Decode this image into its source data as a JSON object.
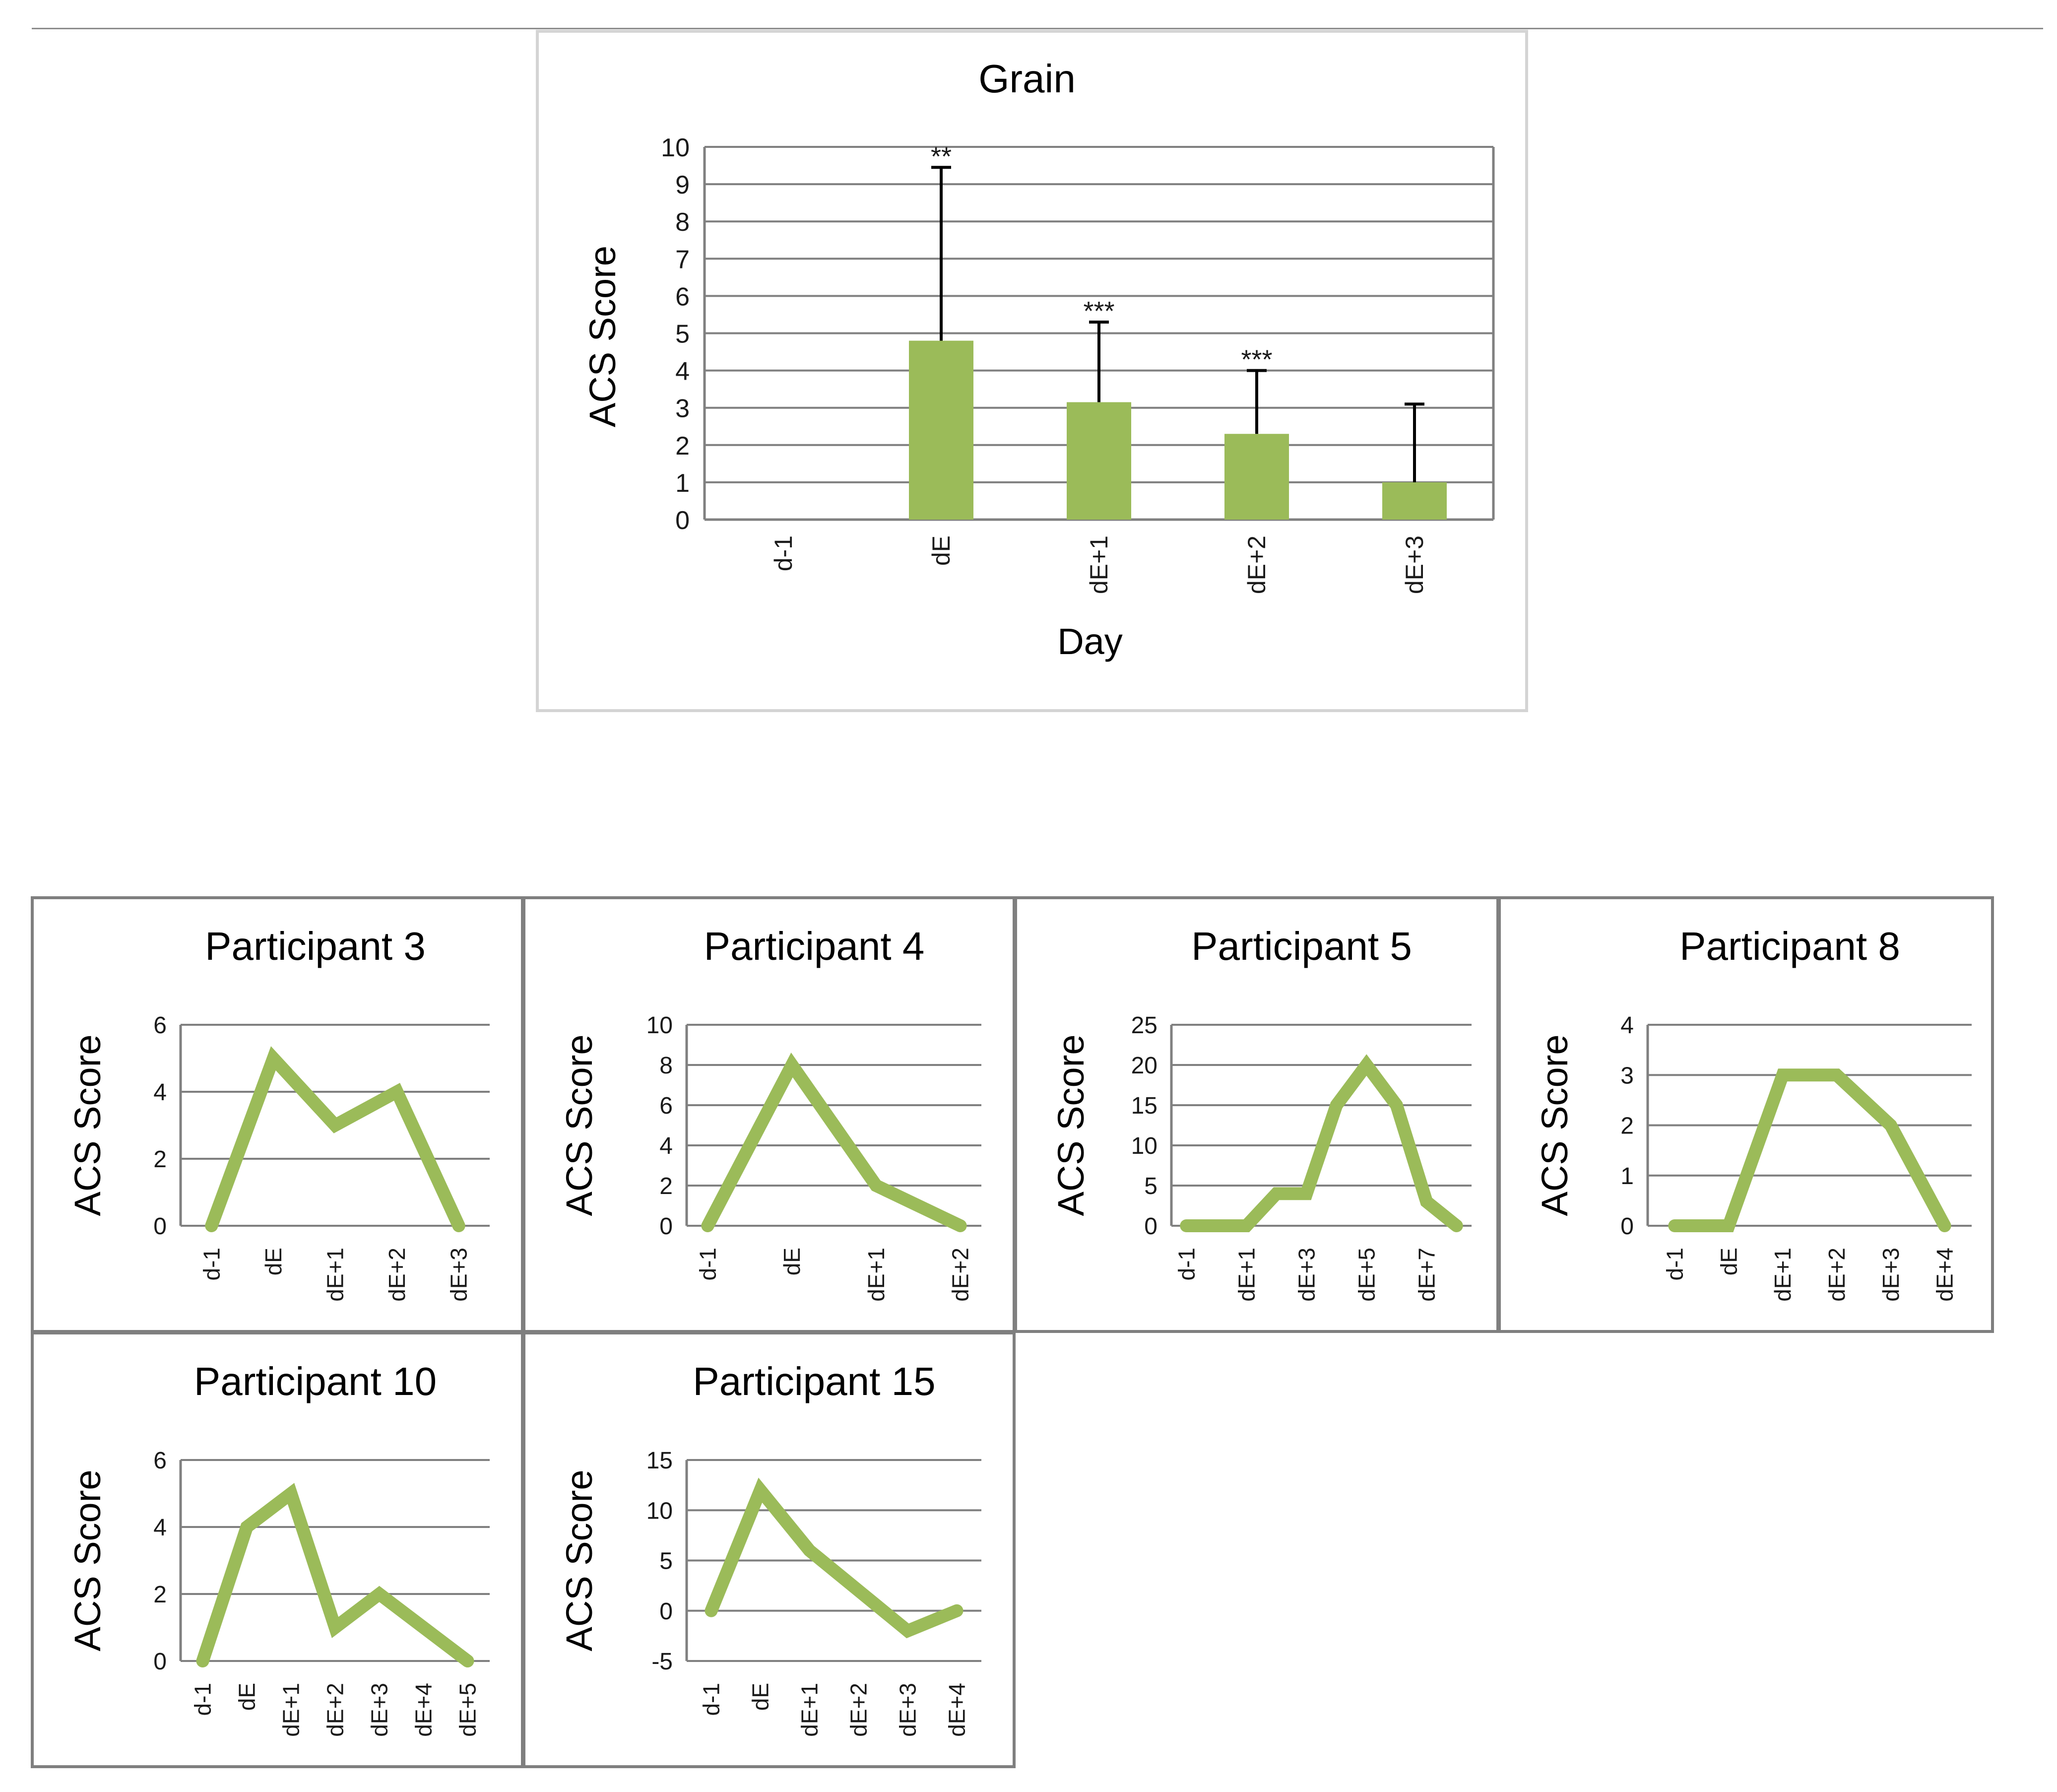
{
  "colors": {
    "bar": "#9bbb59",
    "line": "#9bbb59",
    "error_bar": "#000000",
    "grid": "#808080"
  },
  "chart_data": [
    {
      "type": "bar",
      "title": "Grain",
      "xlabel": "Day",
      "ylabel": "ACS Score",
      "ylim": [
        0,
        10
      ],
      "yticks": [
        0,
        1,
        2,
        3,
        4,
        5,
        6,
        7,
        8,
        9,
        10
      ],
      "categories": [
        "d-1",
        "dE",
        "dE+1",
        "dE+2",
        "dE+3"
      ],
      "values": [
        0,
        4.8,
        3.15,
        2.3,
        1.0
      ],
      "error": [
        0,
        4.65,
        2.15,
        1.7,
        2.1
      ],
      "annotations": [
        "",
        "**",
        "***",
        "***",
        ""
      ],
      "grid": true,
      "legend": "none"
    },
    {
      "type": "line",
      "title": "Participant 3",
      "ylabel": "ACS Score",
      "ylim": [
        0,
        6
      ],
      "yticks": [
        0,
        2,
        4,
        6
      ],
      "categories": [
        "d-1",
        "dE",
        "dE+1",
        "dE+2",
        "dE+3"
      ],
      "labeled": [
        "d-1",
        "dE",
        "dE+1",
        "dE+2",
        "dE+3"
      ],
      "values": [
        0,
        5,
        3,
        4,
        0
      ],
      "grid": true
    },
    {
      "type": "line",
      "title": "Participant 4",
      "ylabel": "ACS Score",
      "ylim": [
        0,
        10
      ],
      "yticks": [
        0,
        2,
        4,
        6,
        8,
        10
      ],
      "categories": [
        "d-1",
        "",
        "dE",
        "",
        "dE+1",
        "",
        "dE+2"
      ],
      "labeled": [
        "d-1",
        "dE",
        "dE+1",
        "dE+2"
      ],
      "values": [
        0,
        4,
        8,
        5,
        2,
        1,
        0
      ],
      "grid": true
    },
    {
      "type": "line",
      "title": "Participant 5",
      "ylabel": "ACS Score",
      "ylim": [
        0,
        25
      ],
      "yticks": [
        0,
        5,
        10,
        15,
        20,
        25
      ],
      "categories": [
        "d-1",
        "",
        "dE+1",
        "",
        "dE+3",
        "",
        "dE+5",
        "",
        "dE+7",
        ""
      ],
      "labeled": [
        "d-1",
        "dE+1",
        "dE+3",
        "dE+5",
        "dE+7"
      ],
      "values": [
        0,
        0,
        0,
        4,
        4,
        15,
        20,
        15,
        3,
        0
      ],
      "grid": true
    },
    {
      "type": "line",
      "title": "Participant 8",
      "ylabel": "ACS Score",
      "ylim": [
        0,
        4
      ],
      "yticks": [
        0,
        1,
        2,
        3,
        4
      ],
      "categories": [
        "d-1",
        "dE",
        "dE+1",
        "dE+2",
        "dE+3",
        "dE+4"
      ],
      "labeled": [
        "d-1",
        "dE",
        "dE+1",
        "dE+2",
        "dE+3",
        "dE+4"
      ],
      "values": [
        0,
        0,
        3,
        3,
        2,
        0
      ],
      "grid": true
    },
    {
      "type": "line",
      "title": "Participant 10",
      "ylabel": "ACS Score",
      "ylim": [
        0,
        6
      ],
      "yticks": [
        0,
        2,
        4,
        6
      ],
      "categories": [
        "d-1",
        "dE",
        "dE+1",
        "dE+2",
        "dE+3",
        "dE+4",
        "dE+5"
      ],
      "labeled": [
        "d-1",
        "dE",
        "dE+1",
        "dE+2",
        "dE+3",
        "dE+4",
        "dE+5"
      ],
      "values": [
        0,
        4,
        5,
        1,
        2,
        1,
        0
      ],
      "grid": true
    },
    {
      "type": "line",
      "title": "Participant 15",
      "ylabel": "ACS Score",
      "ylim": [
        -5,
        15
      ],
      "yticks": [
        -5,
        0,
        5,
        10,
        15
      ],
      "categories": [
        "d-1",
        "dE",
        "dE+1",
        "dE+2",
        "dE+3",
        "dE+4"
      ],
      "labeled": [
        "d-1",
        "dE",
        "dE+1",
        "dE+2",
        "dE+3",
        "dE+4"
      ],
      "values": [
        0,
        12,
        6,
        2,
        -2,
        0
      ],
      "grid": true
    }
  ]
}
